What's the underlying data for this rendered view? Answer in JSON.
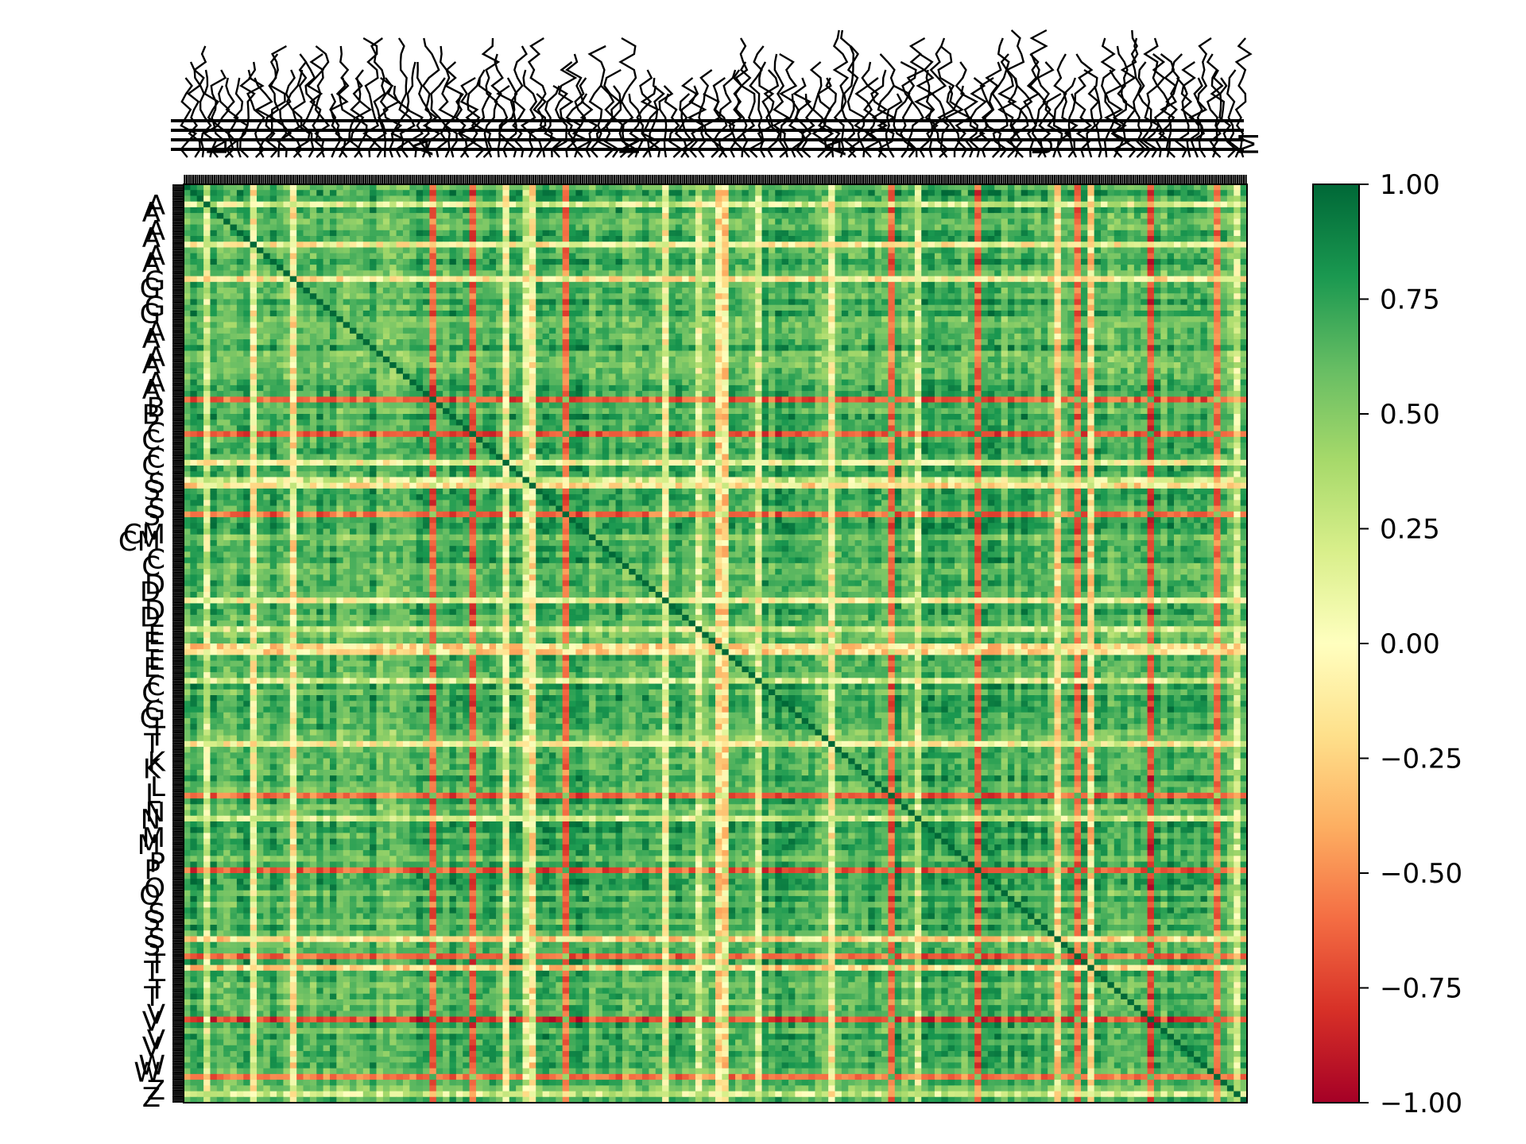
{
  "chart_data": {
    "type": "heatmap",
    "title": "",
    "xlabel": "",
    "ylabel": "",
    "colormap": "RdYlGn",
    "value_range": [
      -1.0,
      1.0
    ],
    "legend": "colorbar-right",
    "grid": false,
    "matrix_size_estimate": 500,
    "diagonal_value": 1.0,
    "colorbar": {
      "ticks": [
        1.0,
        0.75,
        0.5,
        0.25,
        0.0,
        -0.25,
        -0.5,
        -0.75,
        -1.0
      ],
      "tick_labels": [
        "1.00",
        "0.75",
        "0.50",
        "0.25",
        "0.00",
        "−0.25",
        "−0.50",
        "−0.75",
        "−1.00"
      ]
    },
    "colors": {
      "-1.00": "#a50026",
      "-0.75": "#d73027",
      "-0.50": "#f46d43",
      "-0.25": "#fdae61",
      "-0.10": "#fee08b",
      "0.00": "#ffffbf",
      "0.10": "#d9ef8b",
      "0.25": "#a6d96a",
      "0.50": "#66bd63",
      "0.75": "#1a9850",
      "1.00": "#006837"
    },
    "y_tick_labels_legible": [
      "A",
      "A",
      "A",
      "G",
      "G",
      "A",
      "A",
      "A",
      "B",
      "C",
      "C",
      "S",
      "S",
      "CM",
      "C",
      "D",
      "D",
      "E",
      "E",
      "C",
      "G",
      "T",
      "K",
      "L",
      "N",
      "M",
      "P",
      "O",
      "S",
      "S",
      "T",
      "T",
      "V",
      "V",
      "W",
      "Z"
    ],
    "x_tick_labels_legible": [
      "L",
      "A",
      "N",
      "A",
      "U",
      "M"
    ],
    "x_tick_labels_note": "several hundred overlapping rotated ticker labels, illegible"
  }
}
